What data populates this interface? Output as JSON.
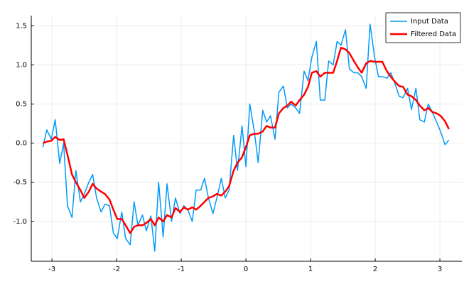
{
  "chart_data": {
    "type": "line",
    "x": [
      -3.14,
      -3.08,
      -3.01,
      -2.95,
      -2.88,
      -2.82,
      -2.76,
      -2.69,
      -2.63,
      -2.56,
      -2.5,
      -2.43,
      -2.37,
      -2.31,
      -2.24,
      -2.18,
      -2.11,
      -2.05,
      -1.99,
      -1.92,
      -1.86,
      -1.79,
      -1.73,
      -1.67,
      -1.6,
      -1.54,
      -1.47,
      -1.41,
      -1.35,
      -1.28,
      -1.22,
      -1.15,
      -1.09,
      -1.02,
      -0.96,
      -0.9,
      -0.83,
      -0.77,
      -0.7,
      -0.64,
      -0.58,
      -0.51,
      -0.45,
      -0.38,
      -0.32,
      -0.26,
      -0.19,
      -0.13,
      -0.06,
      0.0,
      0.06,
      0.13,
      0.19,
      0.26,
      0.32,
      0.38,
      0.45,
      0.51,
      0.58,
      0.64,
      0.7,
      0.77,
      0.83,
      0.9,
      0.96,
      1.02,
      1.09,
      1.15,
      1.22,
      1.28,
      1.35,
      1.41,
      1.47,
      1.54,
      1.6,
      1.67,
      1.73,
      1.79,
      1.86,
      1.92,
      1.99,
      2.05,
      2.11,
      2.18,
      2.24,
      2.31,
      2.37,
      2.43,
      2.5,
      2.56,
      2.63,
      2.69,
      2.76,
      2.82,
      2.88,
      2.95,
      3.01,
      3.08,
      3.14
    ],
    "series": [
      {
        "name": "Input Data",
        "color": "#009af9",
        "width": 1.5,
        "values": [
          -0.05,
          0.17,
          0.05,
          0.3,
          -0.26,
          0.0,
          -0.8,
          -0.95,
          -0.35,
          -0.75,
          -0.65,
          -0.5,
          -0.4,
          -0.7,
          -0.88,
          -0.78,
          -0.8,
          -1.15,
          -1.22,
          -0.88,
          -1.22,
          -1.3,
          -0.75,
          -1.05,
          -0.92,
          -1.12,
          -0.93,
          -1.38,
          -0.5,
          -1.2,
          -0.52,
          -1.0,
          -0.7,
          -0.9,
          -0.8,
          -0.85,
          -1.0,
          -0.6,
          -0.6,
          -0.45,
          -0.7,
          -0.9,
          -0.7,
          -0.45,
          -0.7,
          -0.6,
          0.1,
          -0.35,
          0.22,
          -0.3,
          0.5,
          0.15,
          -0.25,
          0.42,
          0.27,
          0.35,
          0.05,
          0.65,
          0.73,
          0.45,
          0.5,
          0.45,
          0.38,
          0.92,
          0.8,
          1.1,
          1.3,
          0.55,
          0.55,
          1.05,
          1.0,
          1.3,
          1.25,
          1.45,
          0.95,
          0.9,
          0.9,
          0.85,
          0.7,
          1.52,
          1.1,
          0.85,
          0.85,
          0.83,
          0.9,
          0.75,
          0.6,
          0.58,
          0.7,
          0.43,
          0.7,
          0.3,
          0.27,
          0.5,
          0.4,
          0.27,
          0.15,
          -0.02,
          0.04
        ]
      },
      {
        "name": "Filtered Data",
        "color": "#ff0000",
        "width": 2.5,
        "values": [
          0,
          0.02,
          0.03,
          0.08,
          0.04,
          0.05,
          -0.15,
          -0.4,
          -0.5,
          -0.6,
          -0.7,
          -0.62,
          -0.52,
          -0.58,
          -0.62,
          -0.65,
          -0.72,
          -0.85,
          -0.97,
          -0.97,
          -1.05,
          -1.15,
          -1.07,
          -1.05,
          -1.05,
          -1.02,
          -0.97,
          -1.05,
          -0.95,
          -1.0,
          -0.92,
          -0.95,
          -0.83,
          -0.88,
          -0.82,
          -0.85,
          -0.82,
          -0.85,
          -0.8,
          -0.75,
          -0.7,
          -0.68,
          -0.65,
          -0.67,
          -0.62,
          -0.55,
          -0.35,
          -0.25,
          -0.18,
          -0.05,
          0.1,
          0.12,
          0.12,
          0.15,
          0.22,
          0.2,
          0.2,
          0.38,
          0.45,
          0.48,
          0.53,
          0.48,
          0.55,
          0.62,
          0.72,
          0.9,
          0.92,
          0.85,
          0.9,
          0.9,
          0.9,
          1.05,
          1.22,
          1.2,
          1.15,
          1.05,
          0.97,
          0.9,
          1.02,
          1.05,
          1.04,
          1.04,
          1.04,
          0.92,
          0.85,
          0.78,
          0.73,
          0.72,
          0.62,
          0.6,
          0.55,
          0.48,
          0.42,
          0.45,
          0.4,
          0.38,
          0.35,
          0.28,
          0.18
        ]
      }
    ],
    "xlim": [
      -3.32,
      3.34
    ],
    "ylim": [
      -1.51,
      1.63
    ],
    "xticks": [
      -3,
      -2,
      -1,
      0,
      1,
      2,
      3
    ],
    "yticks": [
      {
        "value": -1,
        "label": "-1.0"
      },
      {
        "value": -0.5,
        "label": "-0.5"
      },
      {
        "value": 0,
        "label": "0.0"
      },
      {
        "value": 0.5,
        "label": "0.5"
      },
      {
        "value": 1,
        "label": "1.0"
      },
      {
        "value": 1.5,
        "label": "1.5"
      }
    ],
    "grid": true,
    "legend": "top-right"
  }
}
